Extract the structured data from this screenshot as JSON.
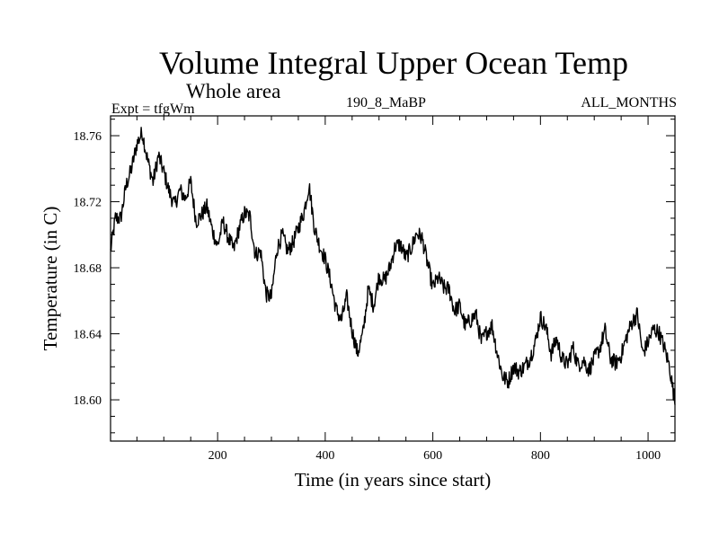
{
  "header": {
    "title": "Volume Integral Upper Ocean Temp",
    "subtitle": "Whole area",
    "expt_label": "Expt = tfgWm",
    "period_label": "190_8_MaBP",
    "months_label": "ALL_MONTHS"
  },
  "chart_data": {
    "type": "line",
    "title": "Volume Integral Upper Ocean Temp",
    "subtitle": "Whole area",
    "xlabel": "Time (in years since start)",
    "ylabel": "Temperature (in C)",
    "xlim": [
      1,
      1050
    ],
    "ylim": [
      18.575,
      18.772
    ],
    "x_ticks": [
      200,
      400,
      600,
      800,
      1000
    ],
    "y_ticks": [
      18.6,
      18.64,
      18.68,
      18.72,
      18.76
    ],
    "y_tick_labels": [
      "18.60",
      "18.64",
      "18.68",
      "18.72",
      "18.76"
    ],
    "grid": false,
    "series": [
      {
        "name": "tfgWm",
        "color": "#000000",
        "x": [
          1,
          10,
          20,
          30,
          40,
          50,
          60,
          70,
          80,
          90,
          100,
          110,
          120,
          130,
          140,
          150,
          160,
          170,
          180,
          190,
          200,
          210,
          220,
          230,
          240,
          250,
          260,
          270,
          280,
          290,
          300,
          310,
          320,
          330,
          340,
          350,
          360,
          370,
          380,
          390,
          400,
          410,
          420,
          430,
          440,
          450,
          460,
          470,
          480,
          490,
          500,
          510,
          520,
          530,
          540,
          550,
          560,
          570,
          580,
          590,
          600,
          610,
          620,
          630,
          640,
          650,
          660,
          670,
          680,
          690,
          700,
          710,
          720,
          730,
          740,
          750,
          760,
          770,
          780,
          790,
          800,
          810,
          820,
          830,
          840,
          850,
          860,
          870,
          880,
          890,
          900,
          910,
          920,
          930,
          940,
          950,
          960,
          970,
          980,
          990,
          1000,
          1010,
          1020,
          1030,
          1040,
          1050
        ],
        "values": [
          18.69,
          18.71,
          18.71,
          18.73,
          18.74,
          18.755,
          18.762,
          18.745,
          18.732,
          18.748,
          18.738,
          18.726,
          18.718,
          18.727,
          18.722,
          18.732,
          18.708,
          18.712,
          18.717,
          18.703,
          18.693,
          18.708,
          18.698,
          18.691,
          18.704,
          18.713,
          18.711,
          18.688,
          18.69,
          18.664,
          18.662,
          18.691,
          18.7,
          18.69,
          18.695,
          18.704,
          18.713,
          18.73,
          18.704,
          18.693,
          18.685,
          18.672,
          18.655,
          18.648,
          18.662,
          18.642,
          18.628,
          18.64,
          18.667,
          18.657,
          18.675,
          18.672,
          18.68,
          18.693,
          18.694,
          18.686,
          18.692,
          18.701,
          18.698,
          18.683,
          18.668,
          18.674,
          18.668,
          18.667,
          18.654,
          18.657,
          18.645,
          18.648,
          18.652,
          18.635,
          18.641,
          18.645,
          18.628,
          18.614,
          18.611,
          18.62,
          18.617,
          18.62,
          18.625,
          18.634,
          18.65,
          18.644,
          18.628,
          18.637,
          18.625,
          18.621,
          18.632,
          18.621,
          18.624,
          18.618,
          18.625,
          18.631,
          18.642,
          18.625,
          18.622,
          18.627,
          18.638,
          18.647,
          18.652,
          18.628,
          18.635,
          18.643,
          18.641,
          18.632,
          18.62,
          18.598
        ]
      }
    ]
  }
}
